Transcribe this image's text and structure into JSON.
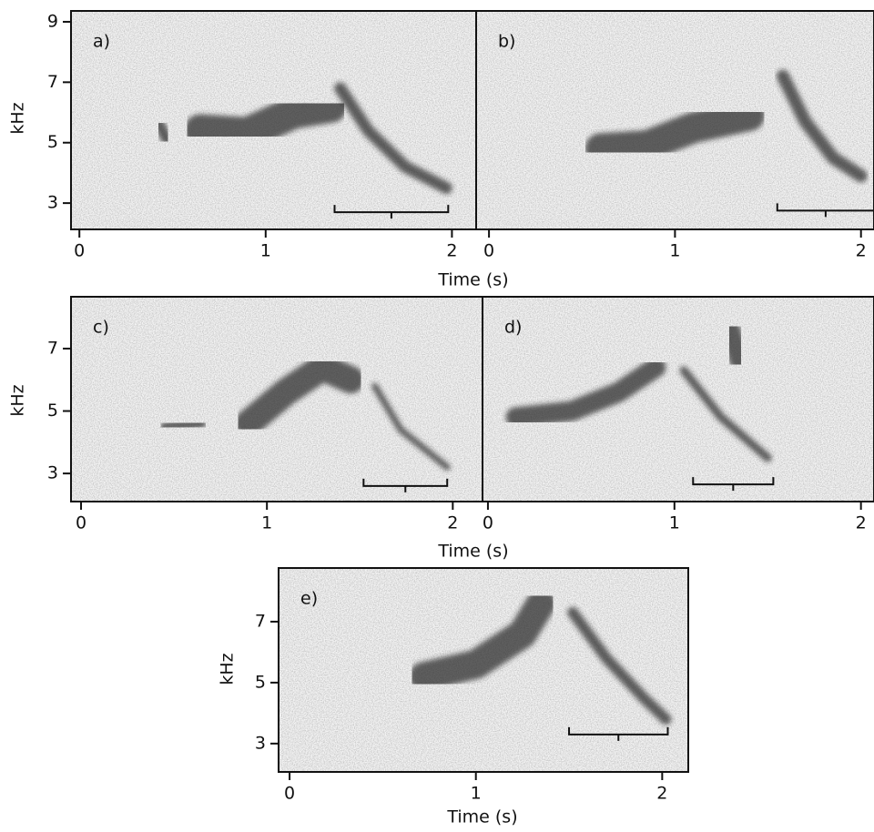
{
  "chart_data": [
    {
      "type": "spectrogram",
      "panel_label": "a)",
      "xlim": [
        -0.045,
        2.13
      ],
      "ylim": [
        2.13,
        9.36
      ],
      "xticks": [
        0,
        1,
        2
      ],
      "yticks": [
        3,
        5,
        7,
        9
      ],
      "ylabel": "kHz"
    },
    {
      "type": "spectrogram",
      "panel_label": "b)",
      "xlim": [
        -0.069,
        2.07
      ],
      "ylim": [
        2.13,
        9.36
      ],
      "xticks": [
        0,
        1,
        2
      ],
      "xlabel": "Time (s)"
    },
    {
      "type": "spectrogram",
      "panel_label": "c)",
      "xlim": [
        -0.054,
        2.16
      ],
      "ylim": [
        2.1,
        8.66
      ],
      "xticks": [
        0,
        1,
        2
      ],
      "yticks": [
        3,
        5,
        7
      ],
      "ylabel": "kHz"
    },
    {
      "type": "spectrogram",
      "panel_label": "d)",
      "xlim": [
        -0.029,
        2.07
      ],
      "ylim": [
        2.1,
        8.66
      ],
      "xticks": [
        0,
        1,
        2
      ],
      "xlabel": "Time (s)"
    },
    {
      "type": "spectrogram",
      "panel_label": "e)",
      "xlim": [
        -0.059,
        2.14
      ],
      "ylim": [
        2.07,
        8.76
      ],
      "xticks": [
        0,
        1,
        2
      ],
      "yticks": [
        3,
        5,
        7
      ],
      "ylabel": "kHz",
      "xlabel": "Time (s)"
    }
  ]
}
